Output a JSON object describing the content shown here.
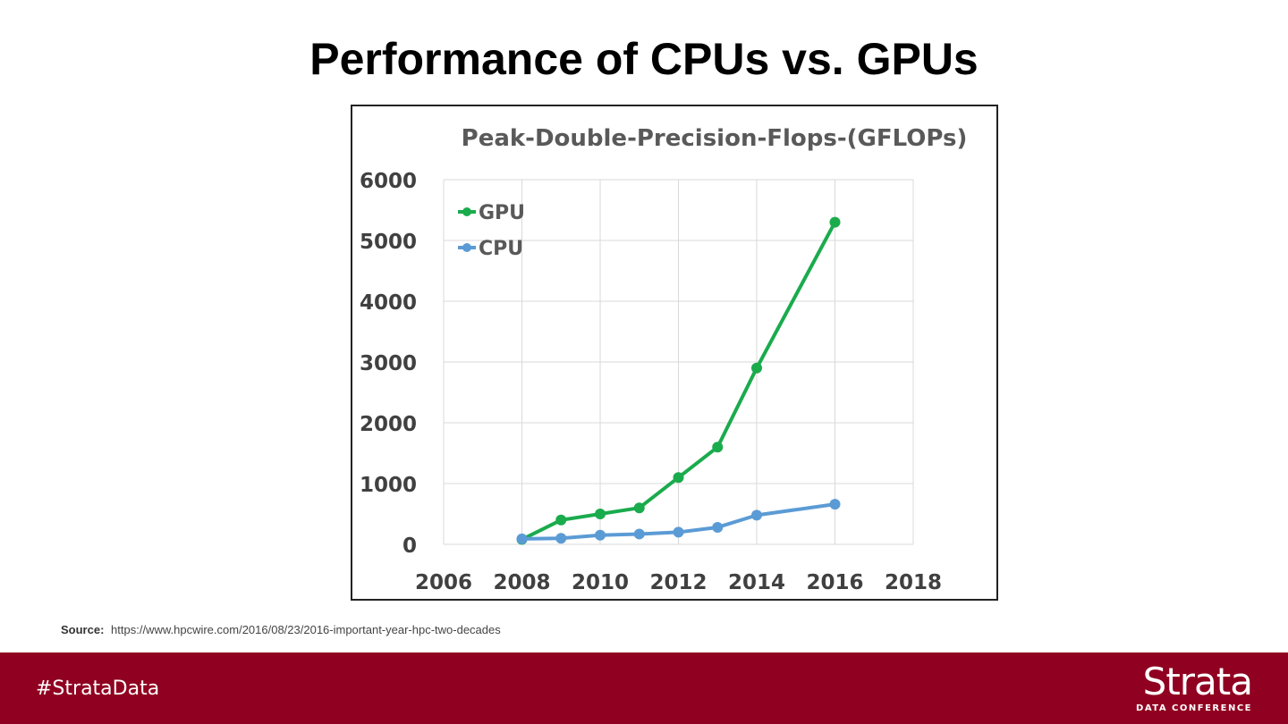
{
  "slide": {
    "title": "Performance of CPUs vs. GPUs",
    "source_label": "Source:",
    "source_text": "https://www.hpcwire.com/2016/08/23/2016-important-year-hpc-two-decades",
    "footer_hashtag": "#StrataData",
    "brand_name": "Strata",
    "brand_sub": "DATA CONFERENCE",
    "footer_color": "#900020"
  },
  "chart_data": {
    "type": "line",
    "title": "Peak-Double-Precision-Flops-(GFLOPs)",
    "xlabel": "",
    "ylabel": "",
    "xlim": [
      2006,
      2018
    ],
    "ylim": [
      0,
      6000
    ],
    "x_ticks": [
      2006,
      2008,
      2010,
      2012,
      2014,
      2016,
      2018
    ],
    "y_ticks": [
      0,
      1000,
      2000,
      3000,
      4000,
      5000,
      6000
    ],
    "grid": true,
    "legend_position": "top-left",
    "series": [
      {
        "name": "GPU",
        "color": "#1aab4d",
        "points": [
          {
            "x": 2008,
            "y": 80
          },
          {
            "x": 2009,
            "y": 400
          },
          {
            "x": 2010,
            "y": 500
          },
          {
            "x": 2011,
            "y": 600
          },
          {
            "x": 2012,
            "y": 1100
          },
          {
            "x": 2013,
            "y": 1600
          },
          {
            "x": 2014,
            "y": 2900
          },
          {
            "x": 2016,
            "y": 5300
          }
        ]
      },
      {
        "name": "CPU",
        "color": "#5b9bd5",
        "points": [
          {
            "x": 2008,
            "y": 90
          },
          {
            "x": 2009,
            "y": 100
          },
          {
            "x": 2010,
            "y": 150
          },
          {
            "x": 2011,
            "y": 170
          },
          {
            "x": 2012,
            "y": 200
          },
          {
            "x": 2013,
            "y": 280
          },
          {
            "x": 2014,
            "y": 480
          },
          {
            "x": 2016,
            "y": 660
          }
        ]
      }
    ]
  }
}
